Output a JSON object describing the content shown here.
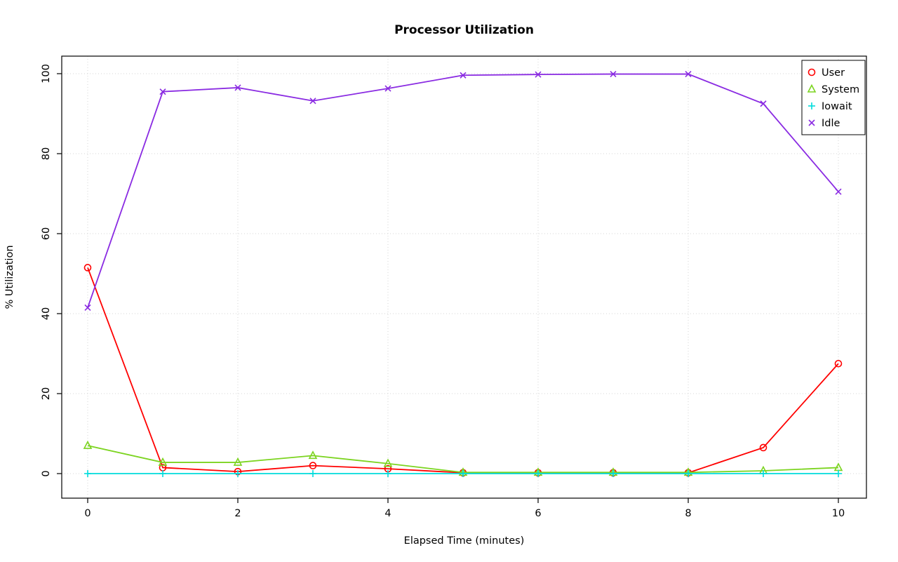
{
  "chart_data": {
    "type": "line",
    "title": "Processor Utilization",
    "xlabel": "Elapsed Time (minutes)",
    "ylabel": "% Utilization",
    "x": [
      0,
      1,
      2,
      3,
      4,
      5,
      6,
      7,
      8,
      9,
      10
    ],
    "xlim": [
      0,
      10
    ],
    "ylim": [
      0,
      100
    ],
    "xticks": [
      0,
      2,
      4,
      6,
      8,
      10
    ],
    "yticks": [
      0,
      20,
      40,
      60,
      80,
      100
    ],
    "grid": true,
    "grid_color": "#d6d6d6",
    "axis_color": "#000000",
    "legend_position": "top-right",
    "series": [
      {
        "name": "User",
        "color": "#ff0000",
        "marker": "circle",
        "values": [
          51.5,
          1.5,
          0.5,
          2.0,
          1.2,
          0.2,
          0.2,
          0.2,
          0.2,
          6.5,
          27.5
        ]
      },
      {
        "name": "System",
        "color": "#7cd420",
        "marker": "triangle",
        "values": [
          7.0,
          2.8,
          2.8,
          4.5,
          2.5,
          0.3,
          0.3,
          0.3,
          0.3,
          0.7,
          1.5
        ]
      },
      {
        "name": "Iowait",
        "color": "#00dcdc",
        "marker": "plus",
        "values": [
          0,
          0,
          0,
          0,
          0,
          0,
          0,
          0,
          0,
          0,
          0
        ]
      },
      {
        "name": "Idle",
        "color": "#8a2be2",
        "marker": "x",
        "values": [
          41.5,
          95.5,
          96.5,
          93.2,
          96.3,
          99.6,
          99.8,
          99.9,
          99.9,
          92.5,
          70.5
        ]
      }
    ]
  }
}
